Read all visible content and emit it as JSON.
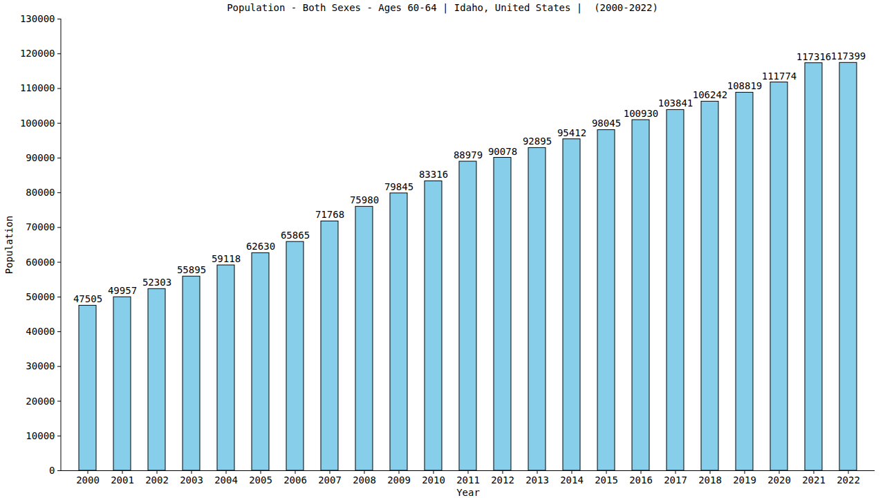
{
  "chart_data": {
    "type": "bar",
    "title": "Population - Both Sexes - Ages 60-64 | Idaho, United States |  (2000-2022)",
    "x_label": "Year",
    "y_label": "Population",
    "categories": [
      "2000",
      "2001",
      "2002",
      "2003",
      "2004",
      "2005",
      "2006",
      "2007",
      "2008",
      "2009",
      "2010",
      "2011",
      "2012",
      "2013",
      "2014",
      "2015",
      "2016",
      "2017",
      "2018",
      "2019",
      "2020",
      "2021",
      "2022"
    ],
    "values": [
      47505,
      49957,
      52303,
      55895,
      59118,
      62630,
      65865,
      71768,
      75980,
      79845,
      83316,
      88979,
      90078,
      92895,
      95412,
      98045,
      100930,
      103841,
      106242,
      108819,
      111774,
      117316,
      117399
    ],
    "color": "#87ceeb",
    "ylim": [
      0,
      130000
    ],
    "yticks": [
      0,
      10000,
      20000,
      30000,
      40000,
      50000,
      60000,
      70000,
      80000,
      90000,
      100000,
      110000,
      120000,
      130000
    ],
    "grid": false,
    "data_labels": true
  }
}
